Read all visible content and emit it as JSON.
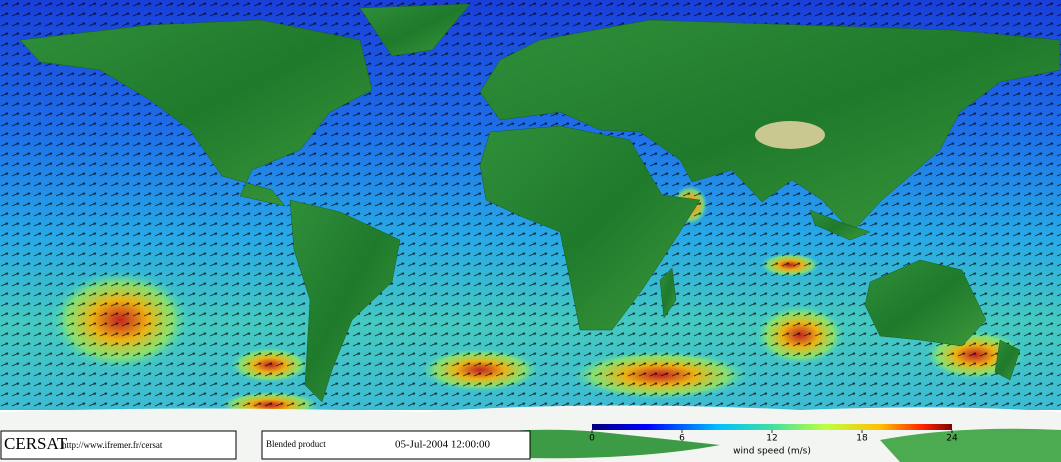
{
  "branding": {
    "logo": "CERSAT",
    "url": "http://www.ifremer.fr/cersat"
  },
  "product": "Blended product",
  "timestamp": "05-Jul-2004 12:00:00",
  "colorbar": {
    "label": "wind speed (m/s)",
    "range": [
      0,
      24
    ],
    "ticks": [
      0,
      6,
      12,
      18,
      24
    ]
  }
}
